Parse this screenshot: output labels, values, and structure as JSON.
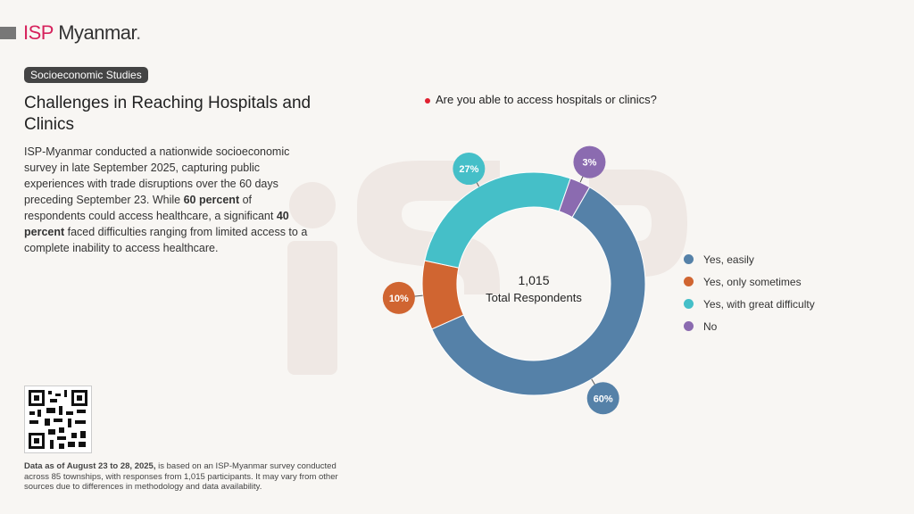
{
  "brand": {
    "isp": "ISP",
    "name": "Myanmar",
    "dot": "."
  },
  "tag": "Socioeconomic Studies",
  "title": "Challenges in Reaching Hospitals and Clinics",
  "description": {
    "p1": "ISP-Myanmar conducted a nationwide socioeconomic survey in late September 2025, capturing public experiences with trade disruptions over the 60 days preceding September 23. While ",
    "b1": "60 percent",
    "p2": " of respondents could access healthcare, a significant ",
    "b2": "40 percent",
    "p3": " faced difficulties ranging from limited access to a complete inability to access healthcare."
  },
  "footnote": {
    "bold": "Data as of August 23 to 28, 2025,",
    "rest": " is based on an ISP-Myanmar survey conducted across 85 townships, with responses from 1,015 participants. It may vary from other sources due to differences in methodology and data availability."
  },
  "chart_data": {
    "type": "pie",
    "title": "Are you able to access hospitals or clinics?",
    "center_value": "1,015",
    "center_label": "Total Respondents",
    "categories": [
      "Yes, easily",
      "Yes, only sometimes",
      "Yes, with great difficulty",
      "No"
    ],
    "values": [
      60,
      10,
      27,
      3
    ],
    "labels": [
      "60%",
      "10%",
      "27%",
      "3%"
    ],
    "colors": [
      "#5581a8",
      "#d06531",
      "#45bfc8",
      "#8b6bb0"
    ],
    "legend_position": "right"
  }
}
